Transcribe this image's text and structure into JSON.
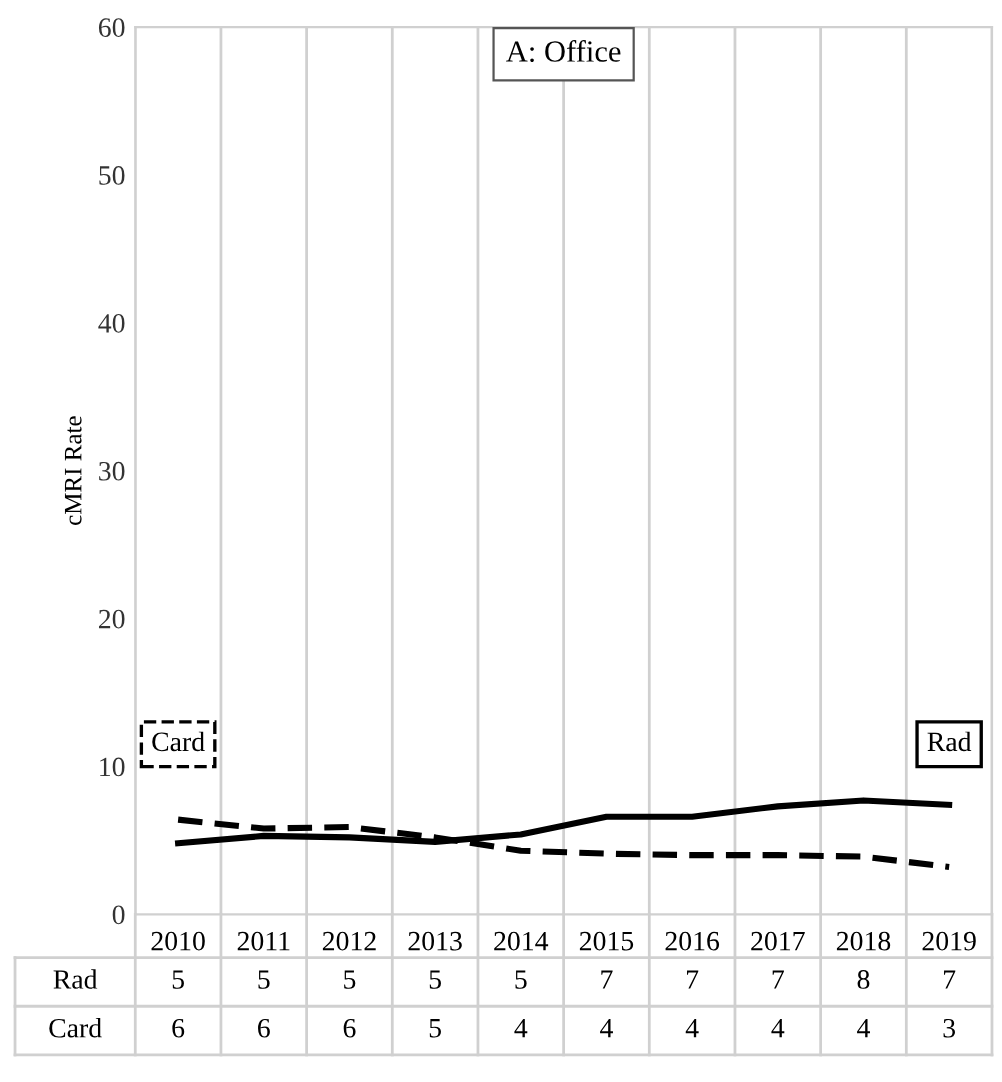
{
  "chart_data": {
    "type": "line",
    "title": "A: Office",
    "ylabel": "cMRI Rate",
    "categories": [
      "2010",
      "2011",
      "2012",
      "2013",
      "2014",
      "2015",
      "2016",
      "2017",
      "2018",
      "2019"
    ],
    "series": [
      {
        "name": "Rad",
        "color": "#000000",
        "line_style": "solid",
        "values": [
          4.8,
          5.3,
          5.2,
          4.9,
          5.4,
          6.6,
          6.6,
          7.3,
          7.7,
          7.4
        ],
        "value_labels": [
          "5",
          "5",
          "5",
          "5",
          "5",
          "7",
          "7",
          "7",
          "8",
          "7"
        ]
      },
      {
        "name": "Card",
        "color": "#000000",
        "line_style": "dashed",
        "values": [
          6.4,
          5.8,
          5.9,
          5.2,
          4.3,
          4.1,
          4.0,
          4.0,
          3.9,
          3.2
        ],
        "value_labels": [
          "6",
          "6",
          "6",
          "5",
          "4",
          "4",
          "4",
          "4",
          "4",
          "3"
        ]
      }
    ],
    "ylim": [
      0,
      60
    ],
    "yticks": [
      0,
      10,
      20,
      30,
      40,
      50,
      60
    ],
    "grid": "x",
    "marker": "none"
  }
}
